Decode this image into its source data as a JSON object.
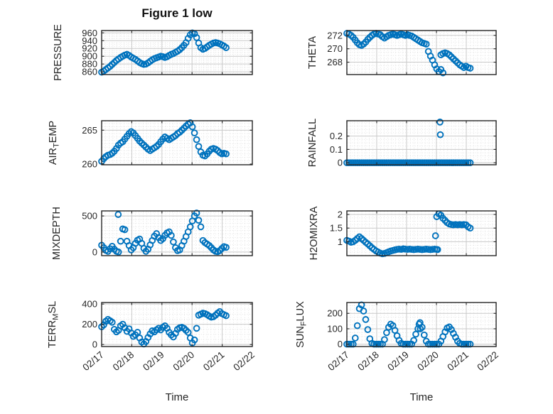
{
  "figure": {
    "title": "Figure 1 low",
    "xlabel": "Time",
    "marker_color": "#0072BD",
    "xtick_labels": [
      "02/17",
      "02/18",
      "02/19",
      "02/20",
      "02/21",
      "02/22"
    ]
  },
  "chart_data": [
    {
      "key": "pressure",
      "type": "scatter",
      "ylabel_parts": [
        {
          "t": "PRESSURE"
        }
      ],
      "ylim": [
        853,
        966
      ],
      "yticks": [
        860,
        880,
        900,
        920,
        940,
        960
      ],
      "y_minor": 5,
      "x0": 0,
      "dx": 0.07,
      "y": [
        859,
        862,
        866,
        870,
        874,
        879,
        884,
        889,
        893,
        897,
        900,
        903,
        905,
        902,
        898,
        895,
        892,
        888,
        884,
        881,
        879,
        880,
        883,
        887,
        891,
        894,
        896,
        898,
        900,
        899,
        897,
        899,
        902,
        905,
        907,
        910,
        913,
        917,
        922,
        928,
        935,
        946,
        955,
        960,
        958,
        948,
        934,
        922,
        918,
        920,
        924,
        928,
        931,
        934,
        935,
        934,
        932,
        929,
        926,
        922
      ],
      "extra": []
    },
    {
      "key": "theta",
      "type": "scatter",
      "ylabel_parts": [
        {
          "t": "THETA"
        }
      ],
      "ylim": [
        266.15,
        272.72
      ],
      "yticks": [
        268,
        270,
        272
      ],
      "y_minor": 0.5,
      "x0": 0,
      "dx": 0.07,
      "y": [
        272.3,
        272.2,
        272.0,
        271.7,
        271.3,
        270.9,
        270.6,
        270.5,
        270.7,
        271.0,
        271.4,
        271.7,
        272.0,
        272.2,
        272.3,
        272.2,
        272.1,
        271.8,
        271.6,
        271.8,
        272.0,
        272.1,
        272.2,
        272.1,
        272.0,
        272.1,
        272.2,
        272.1,
        272.0,
        272.1,
        272.0,
        271.9,
        271.7,
        271.5,
        271.3,
        271.1,
        270.9,
        270.8,
        270.7,
        269.6,
        268.9,
        268.3,
        267.6,
        267.0,
        266.6,
        269.1,
        269.3,
        269.4,
        269.3,
        269.1,
        268.8,
        268.5,
        268.2,
        267.9,
        267.6,
        267.4,
        267.2,
        267.4,
        267.2,
        267.1
      ],
      "extra": [
        [
          3.15,
          266.9
        ],
        [
          3.22,
          266.4
        ]
      ]
    },
    {
      "key": "airtemp",
      "type": "scatter",
      "ylabel_parts": [
        {
          "t": "AIR"
        },
        {
          "t": "T",
          "sub": true
        },
        {
          "t": "EMP"
        }
      ],
      "ylim": [
        259.9,
        266.4
      ],
      "yticks": [
        260,
        265
      ],
      "y_minor": 0.5,
      "x0": 0,
      "dx": 0.07,
      "y": [
        260.4,
        260.8,
        261.1,
        261.3,
        261.4,
        261.6,
        261.9,
        262.3,
        262.8,
        263.1,
        263.3,
        263.7,
        264.1,
        264.5,
        264.8,
        264.6,
        264.2,
        263.8,
        263.4,
        263.1,
        262.8,
        262.5,
        262.2,
        262.0,
        262.2,
        262.4,
        262.6,
        262.9,
        263.3,
        263.7,
        264.0,
        263.8,
        263.6,
        263.8,
        264.0,
        264.2,
        264.5,
        264.7,
        265.0,
        265.3,
        265.6,
        265.9,
        266.1,
        265.5,
        264.6,
        263.6,
        262.6,
        261.8,
        261.3,
        261.2,
        261.5,
        261.9,
        262.2,
        262.3,
        262.2,
        262.0,
        261.7,
        261.5,
        261.6,
        261.5
      ],
      "extra": []
    },
    {
      "key": "rainfall",
      "type": "scatter",
      "ylabel_parts": [
        {
          "t": "RAINFALL"
        }
      ],
      "ylim": [
        -0.015,
        0.315
      ],
      "yticks": [
        0,
        0.1,
        0.2
      ],
      "y_minor": 0.025,
      "x0": 0,
      "dx": 0.07,
      "y": [
        0,
        0,
        0,
        0,
        0,
        0,
        0,
        0,
        0,
        0,
        0,
        0,
        0,
        0,
        0,
        0,
        0,
        0,
        0,
        0,
        0,
        0,
        0,
        0,
        0,
        0,
        0,
        0,
        0,
        0,
        0,
        0,
        0,
        0,
        0,
        0,
        0,
        0,
        0,
        0,
        0,
        0,
        0,
        0,
        0,
        0,
        0,
        0,
        0,
        0,
        0,
        0,
        0,
        0,
        0,
        0,
        0,
        0,
        0,
        0
      ],
      "extra": [
        [
          3.12,
          0.305
        ],
        [
          3.13,
          0.21
        ]
      ]
    },
    {
      "key": "mixdepth",
      "type": "scatter",
      "ylabel_parts": [
        {
          "t": "MIXDEPTH"
        }
      ],
      "ylim": [
        -50,
        570
      ],
      "yticks": [
        0,
        500
      ],
      "y_minor": 50,
      "x0": 0,
      "dx": 0.07,
      "y": [
        95,
        60,
        25,
        10,
        45,
        80,
        40,
        10,
        0,
        150,
        320,
        310,
        150,
        90,
        30,
        60,
        120,
        165,
        180,
        120,
        50,
        10,
        40,
        100,
        160,
        220,
        255,
        200,
        160,
        185,
        230,
        265,
        280,
        230,
        140,
        60,
        20,
        30,
        90,
        150,
        215,
        280,
        350,
        430,
        500,
        540,
        440,
        350,
        160,
        130,
        110,
        90,
        60,
        30,
        10,
        5,
        20,
        50,
        75,
        65
      ],
      "extra": [
        [
          0.55,
          520
        ]
      ]
    },
    {
      "key": "h2omixra",
      "type": "scatter",
      "ylabel_parts": [
        {
          "t": "H2OMIXRA"
        }
      ],
      "ylim": [
        0.49,
        2.13
      ],
      "yticks": [
        1,
        1.5,
        2
      ],
      "y_minor": 0.125,
      "x0": 0,
      "dx": 0.07,
      "y": [
        1.05,
        1.02,
        0.98,
        1.0,
        1.05,
        1.12,
        1.18,
        1.12,
        1.05,
        0.98,
        0.92,
        0.85,
        0.78,
        0.72,
        0.66,
        0.62,
        0.58,
        0.56,
        0.57,
        0.6,
        0.63,
        0.66,
        0.68,
        0.7,
        0.72,
        0.73,
        0.72,
        0.74,
        0.73,
        0.72,
        0.73,
        0.72,
        0.71,
        0.72,
        0.73,
        0.72,
        0.71,
        0.72,
        0.73,
        0.72,
        0.71,
        0.72,
        0.73,
        1.92,
        2.02,
        1.97,
        1.86,
        1.78,
        1.7,
        1.65,
        1.63,
        1.62,
        1.63,
        1.62,
        1.63,
        1.62,
        1.63,
        1.62,
        1.55,
        1.5
      ],
      "extra": [
        [
          2.97,
          1.22
        ],
        [
          3.0,
          0.72
        ],
        [
          3.04,
          0.71
        ]
      ]
    },
    {
      "key": "terrmsl",
      "type": "scatter",
      "ylabel_parts": [
        {
          "t": "TERR"
        },
        {
          "t": "M",
          "sub": true
        },
        {
          "t": "SL"
        }
      ],
      "ylim": [
        -20,
        415
      ],
      "yticks": [
        0,
        200,
        400
      ],
      "y_minor": 50,
      "x0": 0,
      "dx": 0.07,
      "y": [
        175,
        195,
        230,
        248,
        235,
        220,
        150,
        125,
        140,
        185,
        200,
        165,
        130,
        155,
        115,
        80,
        95,
        120,
        65,
        25,
        5,
        30,
        70,
        105,
        135,
        125,
        145,
        160,
        145,
        170,
        185,
        160,
        120,
        95,
        75,
        110,
        150,
        165,
        170,
        160,
        140,
        120,
        65,
        15,
        45,
        160,
        290,
        300,
        310,
        305,
        295,
        280,
        270,
        275,
        290,
        310,
        325,
        305,
        295,
        285
      ],
      "extra": []
    },
    {
      "key": "sunflux",
      "type": "scatter",
      "ylabel_parts": [
        {
          "t": "SUN"
        },
        {
          "t": "F",
          "sub": true
        },
        {
          "t": "LUX"
        }
      ],
      "ylim": [
        -15,
        270
      ],
      "yticks": [
        0,
        100,
        200
      ],
      "y_minor": 25,
      "x0": 0,
      "dx": 0.07,
      "y": [
        0,
        0,
        0,
        0,
        40,
        120,
        230,
        255,
        215,
        160,
        95,
        35,
        5,
        0,
        0,
        0,
        0,
        0,
        30,
        75,
        110,
        130,
        120,
        90,
        55,
        25,
        5,
        0,
        0,
        0,
        0,
        0,
        25,
        65,
        100,
        140,
        110,
        60,
        20,
        0,
        0,
        0,
        0,
        0,
        0,
        20,
        50,
        80,
        105,
        112,
        95,
        70,
        45,
        20,
        5,
        0,
        0,
        0,
        0,
        0
      ],
      "extra": [
        [
          2.42,
          130
        ],
        [
          2.46,
          100
        ]
      ]
    }
  ]
}
